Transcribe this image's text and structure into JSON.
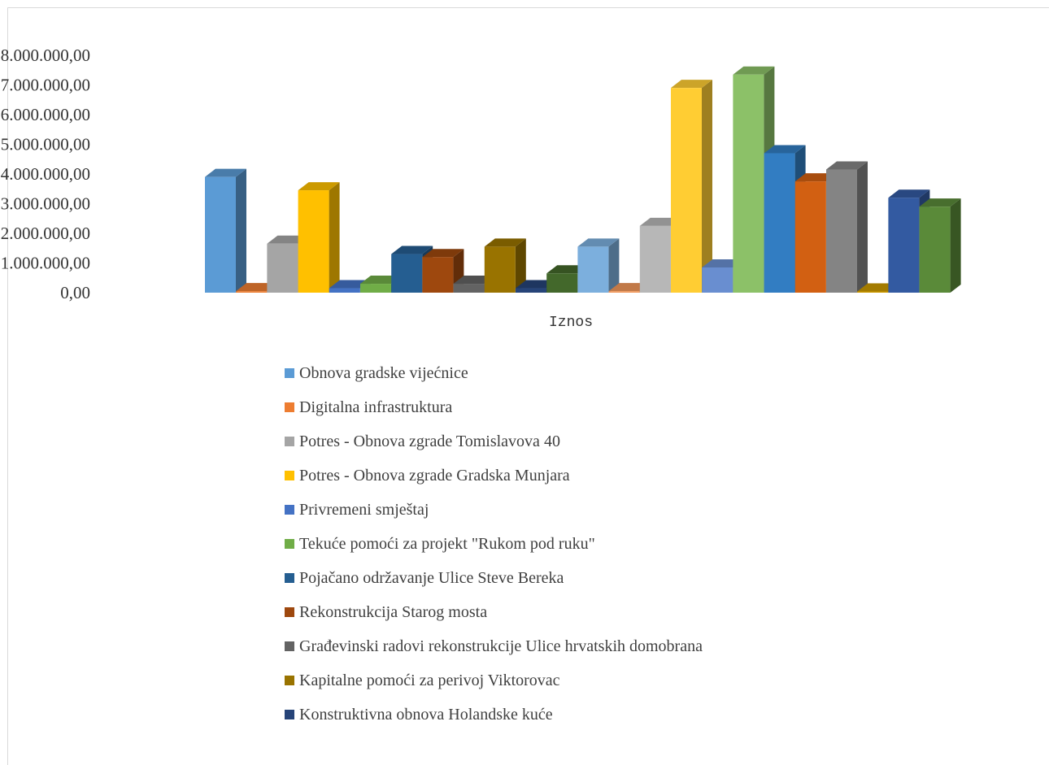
{
  "chart_data": {
    "type": "bar",
    "title": "",
    "xlabel": "Iznos",
    "ylabel": "",
    "ylim": [
      0,
      8000000
    ],
    "ytick_step": 1000000,
    "ytick_labels": [
      "0,00",
      "1.000.000,00",
      "2.000.000,00",
      "3.000.000,00",
      "4.000.000,00",
      "5.000.000,00",
      "6.000.000,00",
      "7.000.000,00",
      "8.000.000,00"
    ],
    "grid": false,
    "legend_position": "bottom",
    "bars": [
      {
        "value": 3900000,
        "color": "#5B9BD5"
      },
      {
        "value": 50000,
        "color": "#ED7D31"
      },
      {
        "value": 1650000,
        "color": "#A5A5A5"
      },
      {
        "value": 3450000,
        "color": "#FFC000"
      },
      {
        "value": 150000,
        "color": "#4472C4"
      },
      {
        "value": 300000,
        "color": "#70AD47"
      },
      {
        "value": 1300000,
        "color": "#255E91"
      },
      {
        "value": 1200000,
        "color": "#9E480E"
      },
      {
        "value": 300000,
        "color": "#636363"
      },
      {
        "value": 1550000,
        "color": "#997300"
      },
      {
        "value": 150000,
        "color": "#264478"
      },
      {
        "value": 650000,
        "color": "#43682B"
      },
      {
        "value": 1550000,
        "color": "#7CAFDD"
      },
      {
        "value": 50000,
        "color": "#F1975A"
      },
      {
        "value": 2250000,
        "color": "#B7B7B7"
      },
      {
        "value": 6900000,
        "color": "#FFCD33"
      },
      {
        "value": 850000,
        "color": "#698ED0"
      },
      {
        "value": 7350000,
        "color": "#8CC168"
      },
      {
        "value": 4700000,
        "color": "#327DC2"
      },
      {
        "value": 3750000,
        "color": "#D26012"
      },
      {
        "value": 4150000,
        "color": "#848484"
      },
      {
        "value": 20000,
        "color": "#CC9A00"
      },
      {
        "value": 3200000,
        "color": "#335AA1"
      },
      {
        "value": 2900000,
        "color": "#5A8A39"
      }
    ],
    "legend": [
      {
        "label": "Obnova gradske vijećnice",
        "color": "#5B9BD5"
      },
      {
        "label": "Digitalna infrastruktura",
        "color": "#ED7D31"
      },
      {
        "label": "Potres - Obnova zgrade Tomislavova 40",
        "color": "#A5A5A5"
      },
      {
        "label": "Potres - Obnova zgrade Gradska Munjara",
        "color": "#FFC000"
      },
      {
        "label": "Privremeni smještaj",
        "color": "#4472C4"
      },
      {
        "label": "Tekuće pomoći za projekt \"Rukom pod ruku\"",
        "color": "#70AD47"
      },
      {
        "label": "Pojačano održavanje Ulice Steve Bereka",
        "color": "#255E91"
      },
      {
        "label": "Rekonstrukcija Starog mosta",
        "color": "#9E480E"
      },
      {
        "label": "Građevinski radovi rekonstrukcije Ulice hrvatskih domobrana",
        "color": "#636363"
      },
      {
        "label": "Kapitalne pomoći za perivoj Viktorovac",
        "color": "#997300"
      },
      {
        "label": "Konstruktivna obnova Holandske kuće",
        "color": "#264478"
      }
    ]
  }
}
